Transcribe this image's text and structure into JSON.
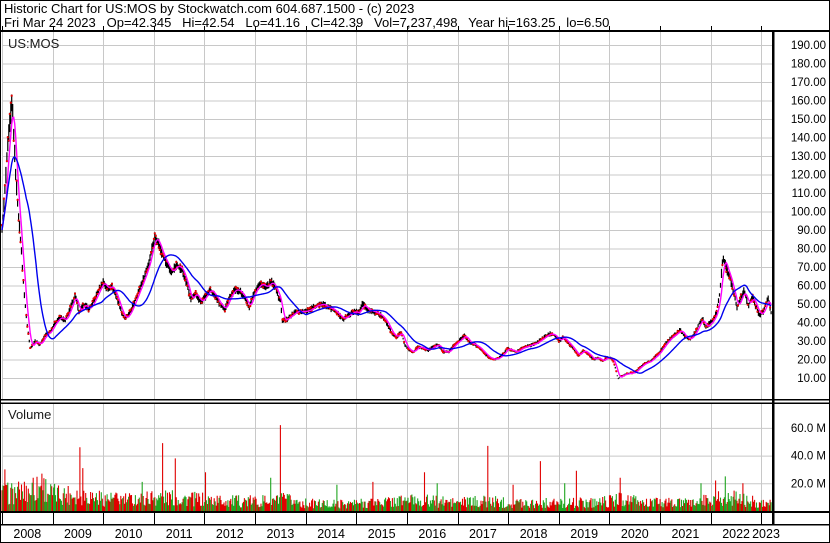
{
  "header": {
    "line1": "Historic Chart for US:MOS by Stockwatch.com 604.687.1500 - (c) 2023",
    "line2": "Fri Mar 24 2023   Op=42.345   Hi=42.54   Lo=41.16   Cl=42.39   Vol=7,237,498   Year hi=163.25   lo=6.50"
  },
  "price_pane": {
    "label": "US:MOS"
  },
  "volume_pane": {
    "label": "Volume"
  },
  "chart_data": {
    "type": "stock-ohlc-weekly-with-volume",
    "symbol": "US:MOS",
    "title": "Historic Chart for US:MOS",
    "date_of_quote": "Fri Mar 24 2023",
    "quote": {
      "open": 42.345,
      "high": 42.54,
      "low": 41.16,
      "close": 42.39,
      "volume": 7237498
    },
    "year_hi": 163.25,
    "year_lo": 6.5,
    "x_start": 2008.0,
    "x_end": 2023.21,
    "year_first": 2008,
    "years": [
      "2008",
      "2009",
      "2010",
      "2011",
      "2012",
      "2013",
      "2014",
      "2015",
      "2016",
      "2017",
      "2018",
      "2019",
      "2020",
      "2021",
      "2022",
      "2023"
    ],
    "price_ticks": [
      190,
      180,
      170,
      160,
      150,
      140,
      130,
      120,
      110,
      100,
      90,
      80,
      70,
      60,
      50,
      40,
      30,
      20,
      10
    ],
    "price_tick_labels": [
      "190.00",
      "180.00",
      "170.00",
      "160.00",
      "150.00",
      "140.00",
      "130.00",
      "120.00",
      "110.00",
      "100.00",
      "90.00",
      "80.00",
      "70.00",
      "60.00",
      "50.00",
      "40.00",
      "30.00",
      "20.00",
      "10.00"
    ],
    "volume_ticks_m": [
      60,
      40,
      20
    ],
    "volume_tick_labels": [
      "60.0 M",
      "40.0 M",
      "20.0 M"
    ],
    "price_anchors": [
      [
        2008.0,
        90
      ],
      [
        2008.05,
        108
      ],
      [
        2008.1,
        130
      ],
      [
        2008.16,
        150
      ],
      [
        2008.2,
        160
      ],
      [
        2008.26,
        125
      ],
      [
        2008.32,
        100
      ],
      [
        2008.38,
        80
      ],
      [
        2008.44,
        55
      ],
      [
        2008.5,
        38
      ],
      [
        2008.56,
        26
      ],
      [
        2008.65,
        30
      ],
      [
        2008.75,
        28
      ],
      [
        2008.85,
        33
      ],
      [
        2008.95,
        35
      ],
      [
        2009.05,
        40
      ],
      [
        2009.15,
        43
      ],
      [
        2009.25,
        41
      ],
      [
        2009.35,
        48
      ],
      [
        2009.45,
        55
      ],
      [
        2009.52,
        45
      ],
      [
        2009.62,
        50
      ],
      [
        2009.72,
        47
      ],
      [
        2009.82,
        52
      ],
      [
        2009.92,
        58
      ],
      [
        2010.0,
        62
      ],
      [
        2010.08,
        58
      ],
      [
        2010.16,
        60
      ],
      [
        2010.25,
        55
      ],
      [
        2010.33,
        48
      ],
      [
        2010.42,
        42
      ],
      [
        2010.5,
        44
      ],
      [
        2010.6,
        50
      ],
      [
        2010.7,
        57
      ],
      [
        2010.8,
        64
      ],
      [
        2010.9,
        72
      ],
      [
        2010.96,
        80
      ],
      [
        2011.02,
        86
      ],
      [
        2011.08,
        84
      ],
      [
        2011.15,
        78
      ],
      [
        2011.25,
        72
      ],
      [
        2011.35,
        67
      ],
      [
        2011.45,
        71
      ],
      [
        2011.55,
        69
      ],
      [
        2011.65,
        61
      ],
      [
        2011.73,
        52
      ],
      [
        2011.82,
        56
      ],
      [
        2011.92,
        51
      ],
      [
        2012.02,
        54
      ],
      [
        2012.1,
        58
      ],
      [
        2012.2,
        55
      ],
      [
        2012.3,
        50
      ],
      [
        2012.4,
        47
      ],
      [
        2012.5,
        54
      ],
      [
        2012.6,
        58
      ],
      [
        2012.7,
        57
      ],
      [
        2012.8,
        53
      ],
      [
        2012.88,
        48
      ],
      [
        2012.96,
        55
      ],
      [
        2013.04,
        59
      ],
      [
        2013.12,
        61
      ],
      [
        2013.22,
        59
      ],
      [
        2013.32,
        62
      ],
      [
        2013.4,
        59
      ],
      [
        2013.46,
        54
      ],
      [
        2013.5,
        52
      ],
      [
        2013.54,
        41
      ],
      [
        2013.64,
        42
      ],
      [
        2013.72,
        44
      ],
      [
        2013.82,
        46
      ],
      [
        2013.92,
        46
      ],
      [
        2014.0,
        46
      ],
      [
        2014.1,
        47
      ],
      [
        2014.2,
        49
      ],
      [
        2014.33,
        50
      ],
      [
        2014.45,
        48
      ],
      [
        2014.55,
        47
      ],
      [
        2014.65,
        44
      ],
      [
        2014.75,
        42
      ],
      [
        2014.85,
        44
      ],
      [
        2014.95,
        46
      ],
      [
        2015.05,
        45
      ],
      [
        2015.12,
        50
      ],
      [
        2015.22,
        47
      ],
      [
        2015.32,
        46
      ],
      [
        2015.42,
        45
      ],
      [
        2015.52,
        43
      ],
      [
        2015.62,
        39
      ],
      [
        2015.7,
        34
      ],
      [
        2015.8,
        32
      ],
      [
        2015.88,
        35
      ],
      [
        2015.96,
        28
      ],
      [
        2016.04,
        25
      ],
      [
        2016.12,
        24
      ],
      [
        2016.22,
        27
      ],
      [
        2016.32,
        26
      ],
      [
        2016.42,
        25
      ],
      [
        2016.52,
        27
      ],
      [
        2016.62,
        28
      ],
      [
        2016.72,
        24
      ],
      [
        2016.82,
        24
      ],
      [
        2016.9,
        27
      ],
      [
        2016.98,
        29
      ],
      [
        2017.06,
        31
      ],
      [
        2017.14,
        33
      ],
      [
        2017.24,
        29
      ],
      [
        2017.34,
        28
      ],
      [
        2017.44,
        26
      ],
      [
        2017.54,
        23
      ],
      [
        2017.62,
        21
      ],
      [
        2017.72,
        20
      ],
      [
        2017.82,
        21
      ],
      [
        2017.9,
        23
      ],
      [
        2017.98,
        26
      ],
      [
        2018.06,
        25
      ],
      [
        2018.16,
        24
      ],
      [
        2018.26,
        26
      ],
      [
        2018.36,
        27
      ],
      [
        2018.46,
        28
      ],
      [
        2018.56,
        29
      ],
      [
        2018.66,
        31
      ],
      [
        2018.76,
        33
      ],
      [
        2018.84,
        34
      ],
      [
        2018.92,
        33
      ],
      [
        2019.0,
        30
      ],
      [
        2019.08,
        32
      ],
      [
        2019.18,
        29
      ],
      [
        2019.28,
        26
      ],
      [
        2019.38,
        22
      ],
      [
        2019.48,
        25
      ],
      [
        2019.58,
        23
      ],
      [
        2019.68,
        20
      ],
      [
        2019.78,
        21
      ],
      [
        2019.86,
        19
      ],
      [
        2019.94,
        21
      ],
      [
        2020.02,
        21
      ],
      [
        2020.08,
        19
      ],
      [
        2020.13,
        14
      ],
      [
        2020.17,
        9.5
      ],
      [
        2020.22,
        11
      ],
      [
        2020.3,
        12
      ],
      [
        2020.4,
        12.5
      ],
      [
        2020.5,
        13
      ],
      [
        2020.6,
        16
      ],
      [
        2020.7,
        18
      ],
      [
        2020.8,
        19
      ],
      [
        2020.88,
        21
      ],
      [
        2020.96,
        23
      ],
      [
        2021.04,
        26
      ],
      [
        2021.12,
        29
      ],
      [
        2021.22,
        32
      ],
      [
        2021.32,
        34
      ],
      [
        2021.4,
        36
      ],
      [
        2021.5,
        32
      ],
      [
        2021.6,
        31
      ],
      [
        2021.7,
        35
      ],
      [
        2021.78,
        40
      ],
      [
        2021.84,
        42
      ],
      [
        2021.9,
        37
      ],
      [
        2021.96,
        39
      ],
      [
        2022.04,
        41
      ],
      [
        2022.12,
        46
      ],
      [
        2022.18,
        56
      ],
      [
        2022.24,
        76
      ],
      [
        2022.3,
        70
      ],
      [
        2022.38,
        64
      ],
      [
        2022.46,
        55
      ],
      [
        2022.52,
        48
      ],
      [
        2022.6,
        54
      ],
      [
        2022.66,
        57
      ],
      [
        2022.74,
        49
      ],
      [
        2022.82,
        54
      ],
      [
        2022.9,
        48
      ],
      [
        2022.96,
        44
      ],
      [
        2023.04,
        46
      ],
      [
        2023.1,
        51
      ],
      [
        2023.14,
        53
      ],
      [
        2023.21,
        42.39
      ]
    ],
    "volume_anchors_m": [
      [
        2008.0,
        12
      ],
      [
        2008.5,
        14
      ],
      [
        2008.8,
        18
      ],
      [
        2009.0,
        12
      ],
      [
        2009.5,
        12
      ],
      [
        2010.0,
        9
      ],
      [
        2010.5,
        8
      ],
      [
        2011.0,
        10
      ],
      [
        2011.5,
        9
      ],
      [
        2012.0,
        8
      ],
      [
        2012.5,
        7
      ],
      [
        2013.0,
        7
      ],
      [
        2013.6,
        8
      ],
      [
        2014.0,
        5.5
      ],
      [
        2014.5,
        5
      ],
      [
        2015.0,
        5.5
      ],
      [
        2015.8,
        7
      ],
      [
        2016.0,
        8
      ],
      [
        2016.5,
        7
      ],
      [
        2017.0,
        6
      ],
      [
        2017.6,
        7
      ],
      [
        2018.0,
        6
      ],
      [
        2018.5,
        6
      ],
      [
        2019.0,
        5.5
      ],
      [
        2019.5,
        6
      ],
      [
        2020.0,
        7
      ],
      [
        2020.3,
        9
      ],
      [
        2020.6,
        6
      ],
      [
        2021.0,
        6
      ],
      [
        2021.5,
        5.5
      ],
      [
        2022.0,
        8
      ],
      [
        2022.3,
        11
      ],
      [
        2022.6,
        8
      ],
      [
        2023.0,
        6
      ],
      [
        2023.21,
        6
      ]
    ],
    "volume_spikes": [
      [
        2008.06,
        30,
        "red"
      ],
      [
        2008.62,
        24,
        "red"
      ],
      [
        2008.78,
        27,
        "red"
      ],
      [
        2009.53,
        46,
        "red"
      ],
      [
        2009.6,
        31,
        "red"
      ],
      [
        2010.77,
        21,
        "green"
      ],
      [
        2011.18,
        49,
        "red"
      ],
      [
        2011.43,
        38,
        "red"
      ],
      [
        2012.02,
        28,
        "red"
      ],
      [
        2013.3,
        24,
        "green"
      ],
      [
        2013.5,
        62,
        "red"
      ],
      [
        2014.62,
        19,
        "green"
      ],
      [
        2015.33,
        21,
        "red"
      ],
      [
        2016.34,
        28,
        "red"
      ],
      [
        2016.6,
        20,
        "green"
      ],
      [
        2017.6,
        47,
        "red"
      ],
      [
        2018.1,
        19,
        "red"
      ],
      [
        2018.64,
        36,
        "red"
      ],
      [
        2019.11,
        20,
        "green"
      ],
      [
        2019.35,
        29,
        "red"
      ],
      [
        2020.22,
        24,
        "red"
      ],
      [
        2021.8,
        20,
        "green"
      ],
      [
        2022.1,
        22,
        "red"
      ],
      [
        2022.28,
        25,
        "green"
      ],
      [
        2022.64,
        20,
        "red"
      ]
    ],
    "ma_short_weeks": 5,
    "ma_long_weeks": 26,
    "colors": {
      "grid": "#c8c8c8",
      "bar": "#000000",
      "bar_tick": "#ee0000",
      "ma_short": "#ff00ff",
      "ma_long": "#0000ee",
      "volume_up": "#1fa51f",
      "volume_down": "#e00000",
      "frame": "#000000",
      "text": "#000000"
    },
    "legend_position": "none",
    "grid_on": true
  }
}
